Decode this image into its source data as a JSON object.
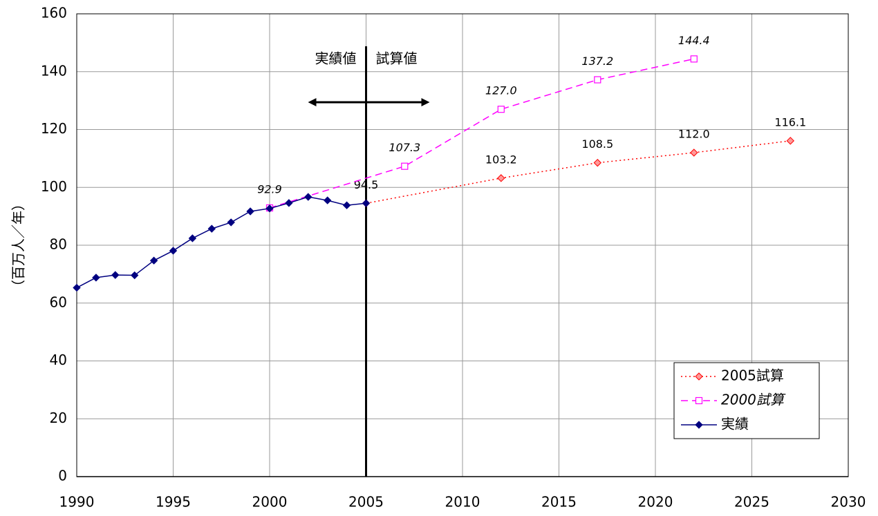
{
  "chart_data": {
    "type": "line",
    "y_label": "（百万人／年）",
    "xlim": [
      1990,
      2030
    ],
    "xticks": [
      1990,
      1995,
      2000,
      2005,
      2010,
      2015,
      2020,
      2025,
      2030
    ],
    "ylim": [
      0,
      160
    ],
    "yticks": [
      0,
      20,
      40,
      60,
      80,
      100,
      120,
      140,
      160
    ],
    "grid": true,
    "legend": "lower right",
    "annotations": {
      "left_text": "実績値",
      "right_text": "試算値",
      "divider_x": 2005
    },
    "series": [
      {
        "name": "2005試算",
        "color": "#ff0000",
        "marker": "diamond",
        "marker_fill": "#ff9999",
        "dash": "2,4",
        "italic": false,
        "x": [
          2005,
          2012,
          2017,
          2022,
          2027
        ],
        "values": [
          94.5,
          103.2,
          108.5,
          112.0,
          116.1
        ],
        "value_labels": [
          "94.5",
          "103.2",
          "108.5",
          "112.0",
          "116.1"
        ]
      },
      {
        "name": "2000試算",
        "color": "#ff00ff",
        "marker": "square",
        "marker_fill": "#ffffff",
        "dash": "10,6",
        "italic": true,
        "x": [
          2000,
          2007,
          2012,
          2017,
          2022
        ],
        "values": [
          92.9,
          107.3,
          127.0,
          137.2,
          144.4
        ],
        "value_labels": [
          "92.9",
          "107.3",
          "127.0",
          "137.2",
          "144.4"
        ]
      },
      {
        "name": "実績",
        "color": "#000080",
        "marker": "diamond",
        "marker_fill": "#000080",
        "dash": "",
        "italic": false,
        "x": [
          1990,
          1991,
          1992,
          1993,
          1994,
          1995,
          1996,
          1997,
          1998,
          1999,
          2000,
          2001,
          2002,
          2003,
          2004,
          2005
        ],
        "values": [
          65.3,
          68.8,
          69.7,
          69.6,
          74.7,
          78.1,
          82.4,
          85.7,
          87.9,
          91.7,
          92.7,
          94.6,
          96.7,
          95.5,
          93.8,
          94.5
        ]
      }
    ]
  }
}
